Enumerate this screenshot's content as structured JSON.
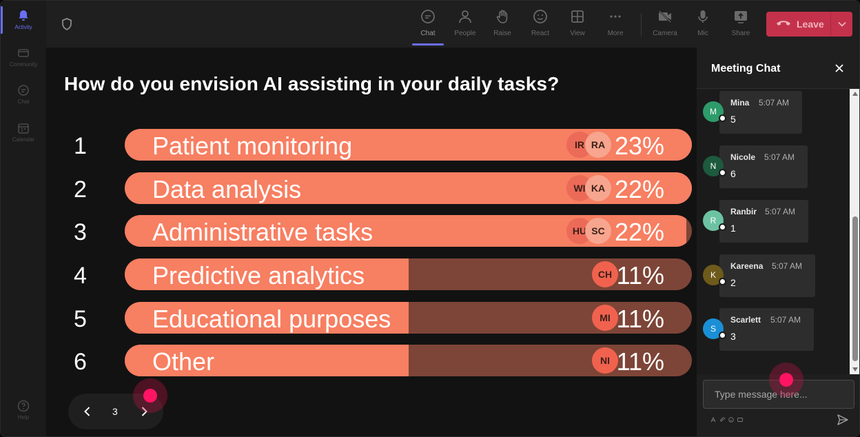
{
  "rail": {
    "items": [
      {
        "label": "Activity",
        "icon": "bell-icon",
        "active": true
      },
      {
        "label": "Community",
        "icon": "community-icon"
      },
      {
        "label": "Chat",
        "icon": "chat-icon"
      },
      {
        "label": "Calendar",
        "icon": "calendar-icon"
      }
    ],
    "help": {
      "label": "Help",
      "icon": "help-icon"
    }
  },
  "toolbar": {
    "chat": "Chat",
    "people": "People",
    "raise": "Raise",
    "react": "React",
    "view": "View",
    "more": "More",
    "camera": "Camera",
    "mic": "Mic",
    "share": "Share",
    "leave": "Leave"
  },
  "poll": {
    "question": "How do you envision AI assisting in your daily tasks?",
    "options": [
      {
        "num": "1",
        "label": "Patient monitoring",
        "pct": "23%",
        "fill": 1.0,
        "avatars": [
          "IR",
          "RA"
        ]
      },
      {
        "num": "2",
        "label": "Data analysis",
        "pct": "22%",
        "fill": 1.0,
        "avatars": [
          "WI",
          "KA"
        ]
      },
      {
        "num": "3",
        "label": "Administrative tasks",
        "pct": "22%",
        "fill": 0.99,
        "avatars": [
          "HU",
          "SC"
        ]
      },
      {
        "num": "4",
        "label": "Predictive analytics",
        "pct": "11%",
        "fill": 0.5,
        "avatars": [
          "CH"
        ]
      },
      {
        "num": "5",
        "label": "Educational purposes",
        "pct": "11%",
        "fill": 0.5,
        "avatars": [
          "MI"
        ]
      },
      {
        "num": "6",
        "label": "Other",
        "pct": "11%",
        "fill": 0.5,
        "avatars": [
          "NI"
        ]
      }
    ]
  },
  "pager": {
    "page": "3"
  },
  "chat": {
    "title": "Meeting Chat",
    "messages": [
      {
        "initial": "M",
        "name": "Mina",
        "time": "5:07 AM",
        "text": "5",
        "color": "#2e9b6b"
      },
      {
        "initial": "N",
        "name": "Nicole",
        "time": "5:07 AM",
        "text": "6",
        "color": "#1d5a3e"
      },
      {
        "initial": "R",
        "name": "Ranbir",
        "time": "5:07 AM",
        "text": "1",
        "color": "#6cc3a4"
      },
      {
        "initial": "K",
        "name": "Kareena",
        "time": "5:07 AM",
        "text": "2",
        "color": "#6e5a1a"
      },
      {
        "initial": "S",
        "name": "Scarlett",
        "time": "5:07 AM",
        "text": "3",
        "color": "#1a8fd6"
      }
    ],
    "placeholder": "Type message here..."
  },
  "colors": {
    "bar_fill": "#f77f62",
    "bar_track": "#7d4537",
    "leave": "#c4314b",
    "accent": "#6b6ff5"
  }
}
